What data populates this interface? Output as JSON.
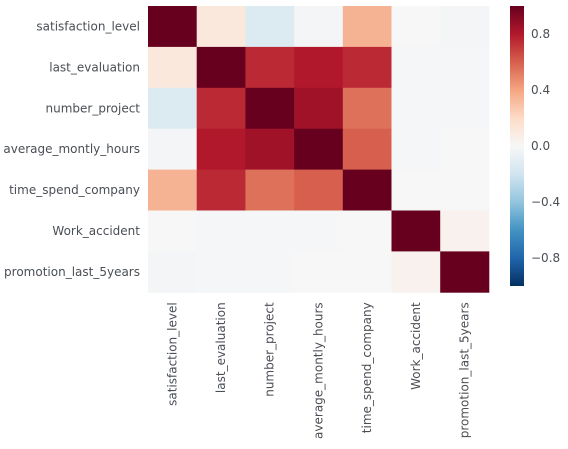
{
  "chart_data": {
    "type": "heatmap",
    "title": "",
    "xlabel": "",
    "ylabel": "",
    "rows": [
      "satisfaction_level",
      "last_evaluation",
      "number_project",
      "average_montly_hours",
      "time_spend_company",
      "Work_accident",
      "promotion_last_5years"
    ],
    "columns": [
      "satisfaction_level",
      "last_evaluation",
      "number_project",
      "average_montly_hours",
      "time_spend_company",
      "Work_accident",
      "promotion_last_5years"
    ],
    "values": [
      [
        1.0,
        0.11,
        -0.14,
        -0.02,
        0.35,
        0.0,
        -0.02
      ],
      [
        0.11,
        1.0,
        0.75,
        0.8,
        0.75,
        -0.01,
        -0.01
      ],
      [
        -0.14,
        0.75,
        1.0,
        0.85,
        0.55,
        -0.01,
        -0.01
      ],
      [
        -0.02,
        0.8,
        0.85,
        1.0,
        0.6,
        -0.01,
        0.0
      ],
      [
        0.35,
        0.75,
        0.55,
        0.6,
        1.0,
        0.0,
        0.0
      ],
      [
        0.0,
        -0.01,
        -0.01,
        -0.01,
        0.0,
        1.0,
        0.04
      ],
      [
        -0.02,
        -0.01,
        -0.01,
        0.0,
        0.0,
        0.04,
        1.0
      ]
    ],
    "colorbar": {
      "ticks": [
        0.8,
        0.4,
        0.0,
        -0.4,
        -0.8
      ],
      "tick_labels": [
        "0.8",
        "0.4",
        "0.0",
        "−0.4",
        "−0.8"
      ],
      "range": [
        -1,
        1
      ],
      "colormap": "RdBu_r",
      "colors": [
        "#67001f",
        "#b2182b",
        "#d6604d",
        "#f4a582",
        "#fddbc7",
        "#f7f7f7",
        "#d1e5f0",
        "#92c5de",
        "#4393c3",
        "#2166ac",
        "#053061"
      ]
    },
    "grid": false,
    "legend": "colorbar-right"
  }
}
